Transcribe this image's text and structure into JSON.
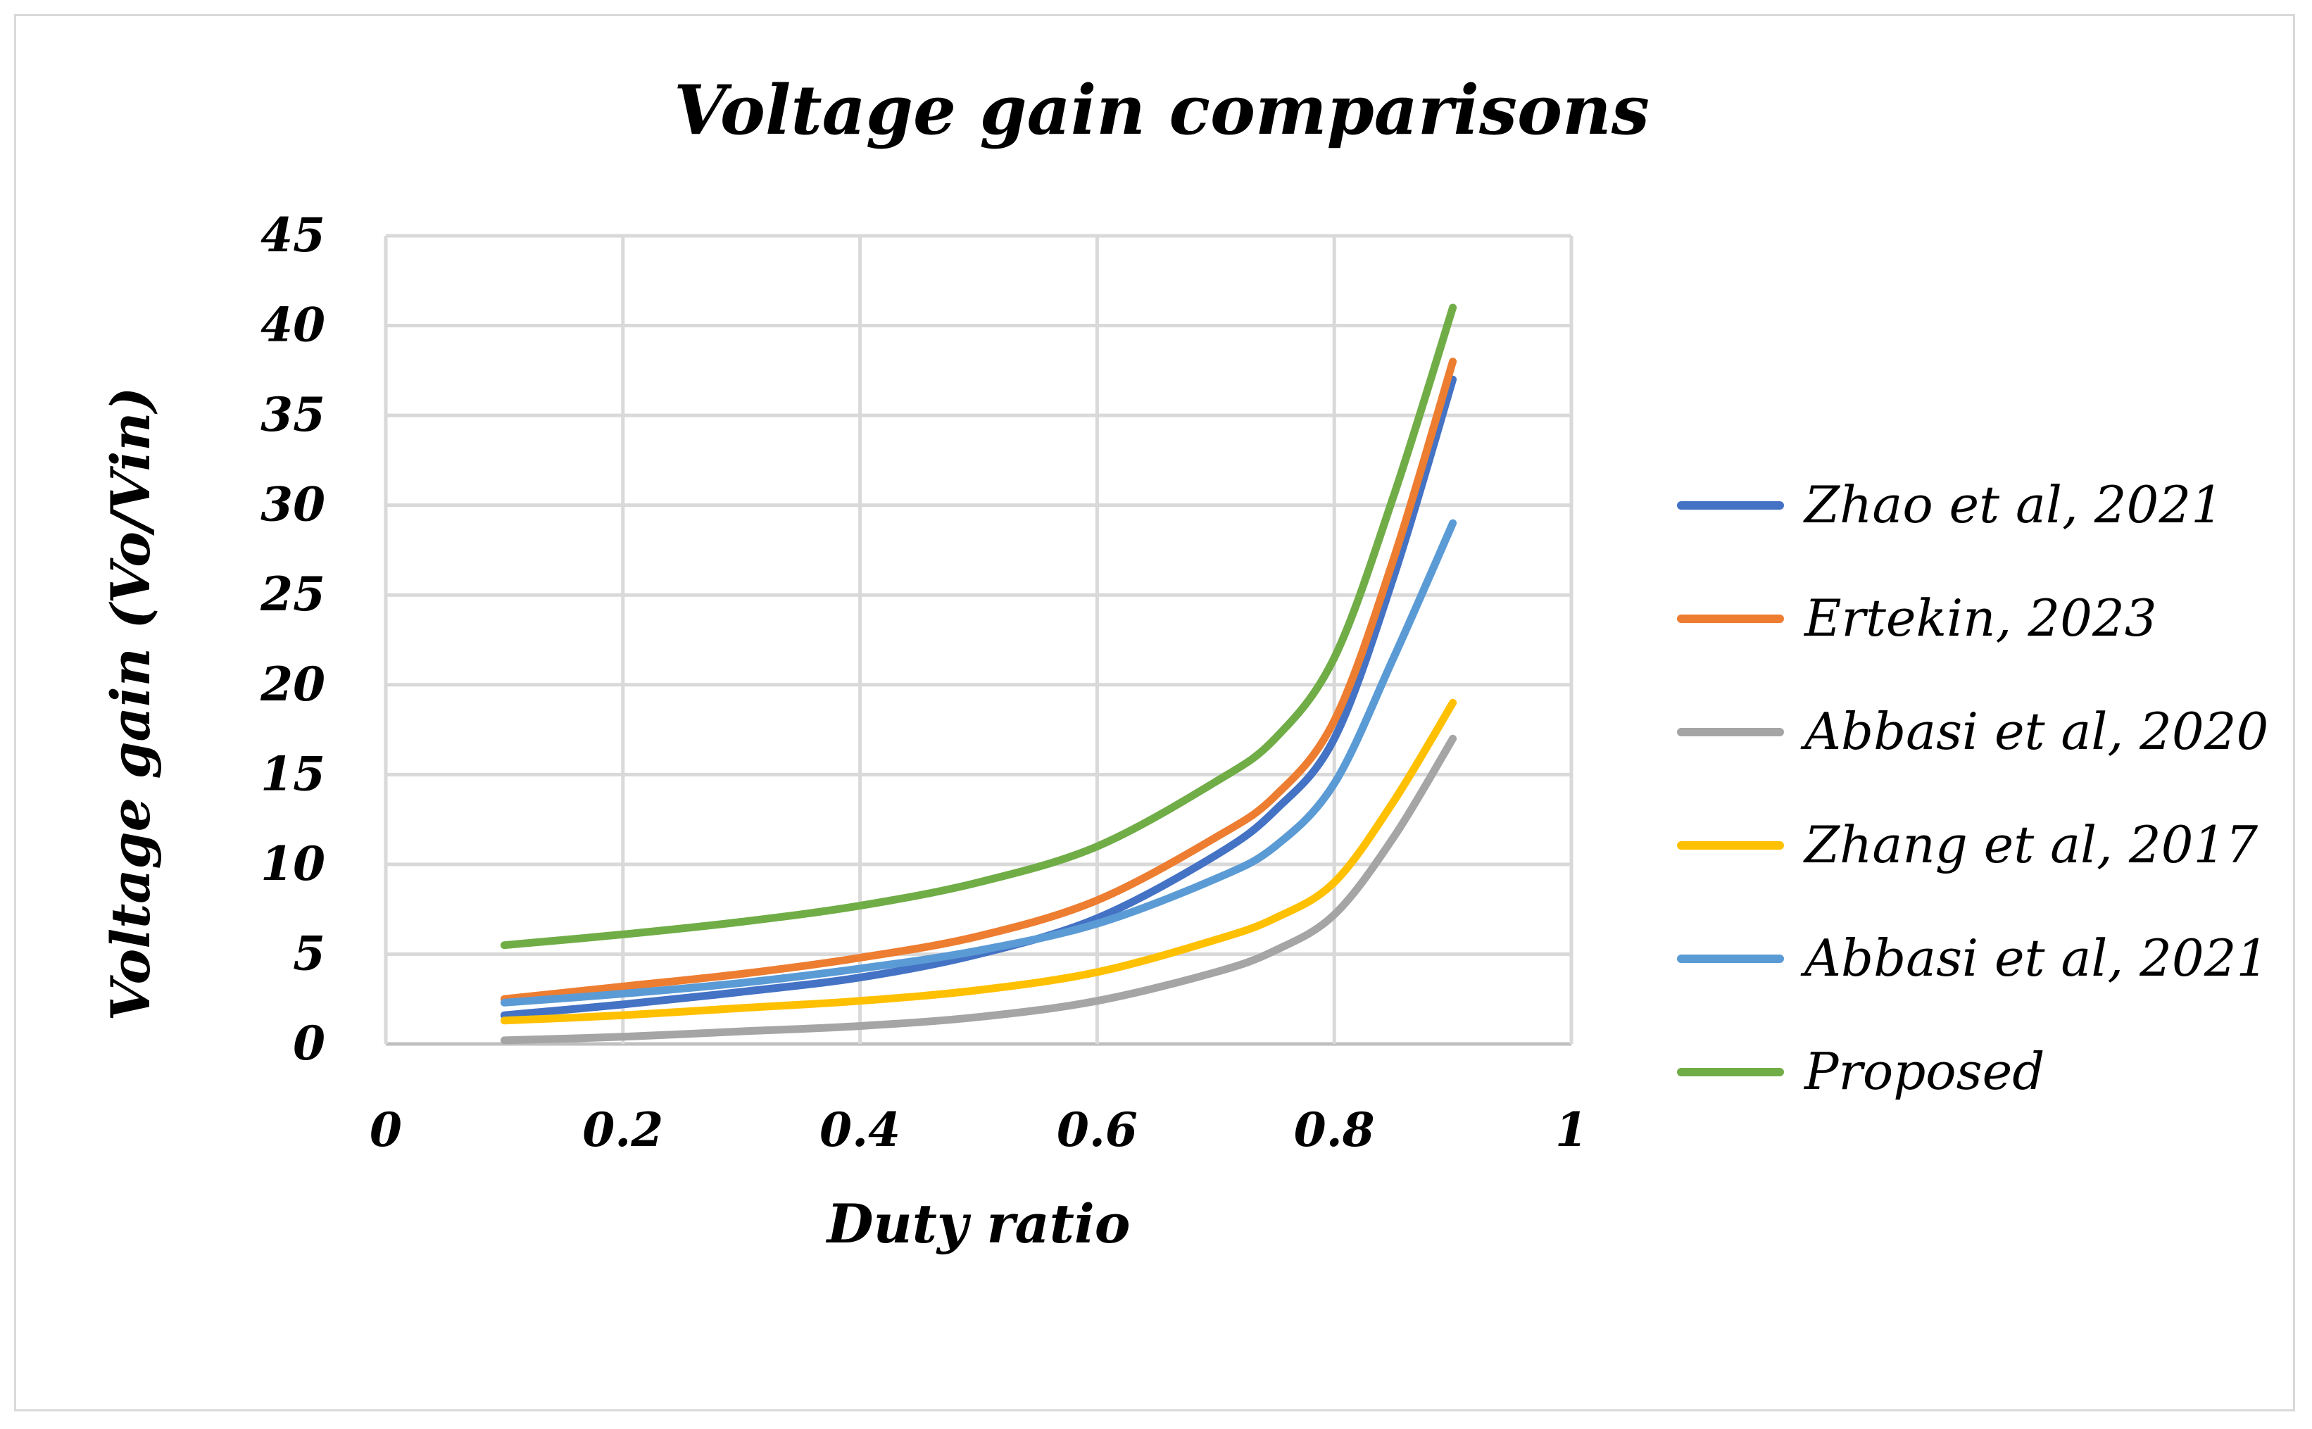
{
  "chart_data": {
    "type": "line",
    "title": "Voltage gain comparisons",
    "xlabel": "Duty ratio",
    "ylabel": "Voltage gain (Vo/Vin)",
    "xlim": [
      0,
      1
    ],
    "ylim": [
      0,
      45
    ],
    "x_ticks": [
      "0",
      "0.2",
      "0.4",
      "0.6",
      "0.8",
      "1"
    ],
    "x_tick_values": [
      0,
      0.2,
      0.4,
      0.6,
      0.8,
      1
    ],
    "y_ticks": [
      "0",
      "5",
      "10",
      "15",
      "20",
      "25",
      "30",
      "35",
      "40",
      "45"
    ],
    "y_tick_values": [
      0,
      5,
      10,
      15,
      20,
      25,
      30,
      35,
      40,
      45
    ],
    "grid": true,
    "legend_position": "right",
    "x": [
      0.1,
      0.2,
      0.3,
      0.4,
      0.5,
      0.6,
      0.7,
      0.75,
      0.8,
      0.85,
      0.9
    ],
    "series": [
      {
        "name": "Zhao et al, 2021",
        "color": "#4472C4",
        "values": [
          1.6,
          2.2,
          2.9,
          3.7,
          5.0,
          7.0,
          10.5,
          13.0,
          17.0,
          26.0,
          37.0
        ]
      },
      {
        "name": "Ertekin, 2023",
        "color": "#ED7D31",
        "values": [
          2.5,
          3.2,
          3.9,
          4.8,
          6.0,
          8.0,
          11.5,
          13.8,
          18.0,
          27.0,
          38.0
        ]
      },
      {
        "name": "Abbasi et al, 2020",
        "color": "#A5A5A5",
        "values": [
          0.2,
          0.4,
          0.7,
          1.0,
          1.5,
          2.4,
          4.0,
          5.2,
          7.2,
          11.5,
          17.0
        ]
      },
      {
        "name": "Zhang et al, 2017",
        "color": "#FFC000",
        "values": [
          1.3,
          1.6,
          2.0,
          2.4,
          3.0,
          4.0,
          5.8,
          7.0,
          9.0,
          13.5,
          19.0
        ]
      },
      {
        "name": "Abbasi et al, 2021",
        "color": "#5B9BD5",
        "values": [
          2.3,
          2.8,
          3.4,
          4.2,
          5.2,
          6.7,
          9.2,
          11.0,
          14.5,
          21.5,
          29.0
        ]
      },
      {
        "name": "Proposed",
        "color": "#70AD47",
        "values": [
          5.5,
          6.1,
          6.8,
          7.7,
          9.0,
          11.0,
          14.6,
          17.0,
          21.5,
          30.5,
          41.0
        ]
      }
    ]
  },
  "colors": {
    "grid": "#d9d9d9",
    "axis": "#bfbfbf",
    "frame": "#d9d9d9"
  }
}
